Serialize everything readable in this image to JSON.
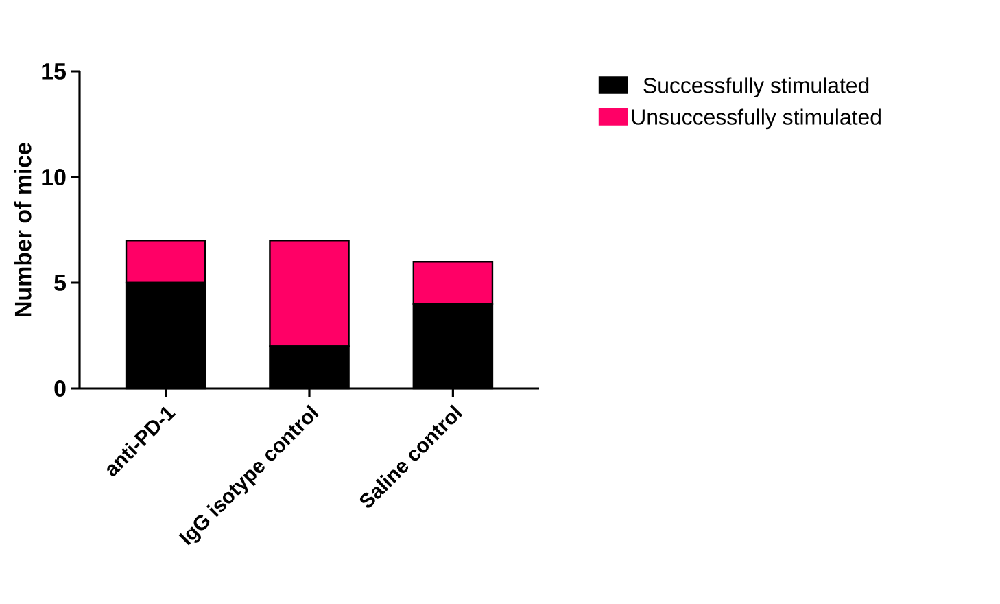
{
  "chart_data": {
    "type": "bar",
    "stacked": true,
    "ylabel": "Number of mice",
    "categories": [
      "anti-PD-1",
      "IgG isotype control",
      "Saline control"
    ],
    "series": [
      {
        "name": "Successfully stimulated",
        "color": "#000000",
        "values": [
          5,
          2,
          4
        ]
      },
      {
        "name": "Unsuccessfully stimulated",
        "color": "#ff0066",
        "values": [
          2,
          5,
          2
        ]
      }
    ],
    "ylim": [
      0,
      15
    ],
    "yticks": [
      0,
      5,
      10,
      15
    ],
    "grid": false,
    "legend": "top right"
  }
}
